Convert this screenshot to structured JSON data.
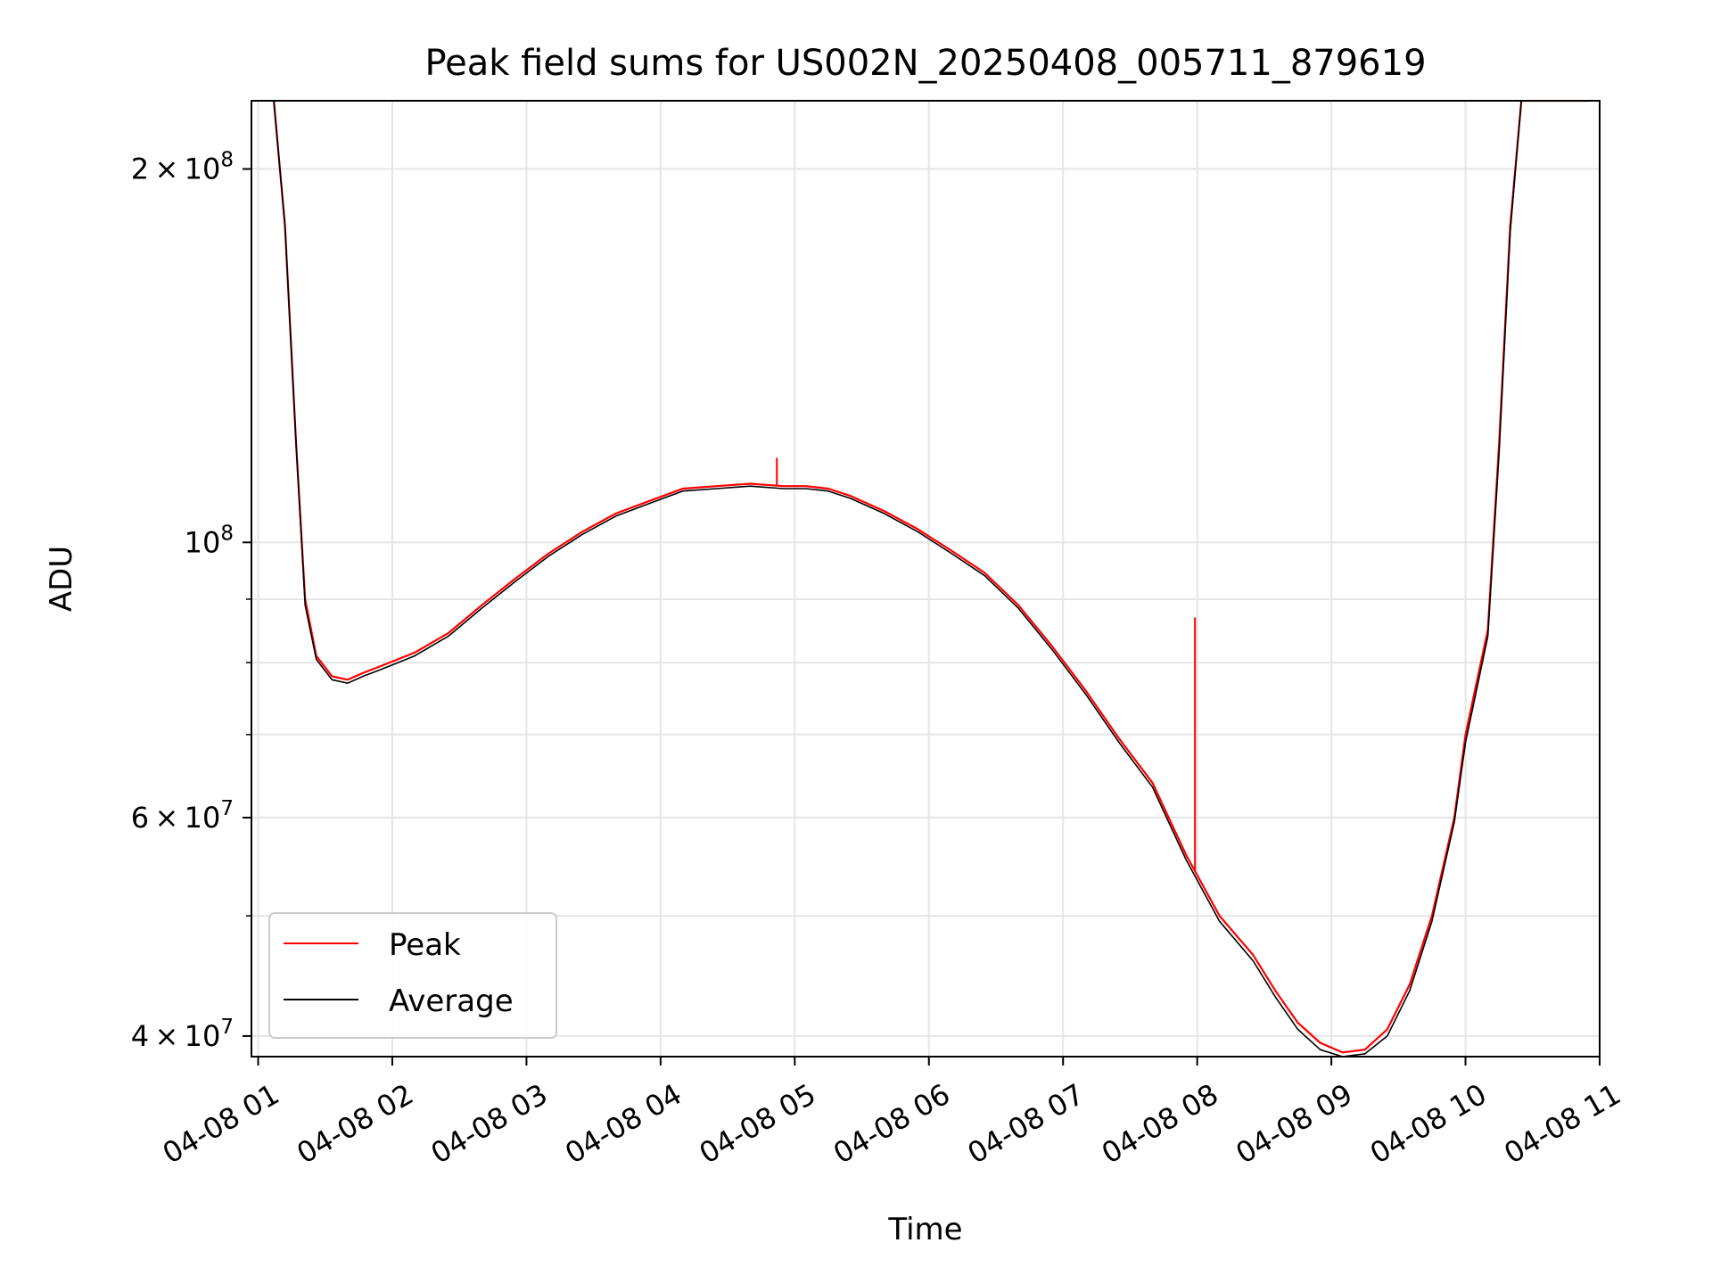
{
  "chart_data": {
    "type": "line",
    "title": "Peak field sums for US002N_20250408_005711_879619",
    "xlabel": "Time",
    "ylabel": "ADU",
    "yscale": "log",
    "ylim": [
      38500000,
      227000000
    ],
    "xlim": [
      "04-08 00:57",
      "04-08 11:00"
    ],
    "grid": true,
    "legend_position": "lower-left",
    "x_ticks": [
      "04-08 01",
      "04-08 02",
      "04-08 03",
      "04-08 04",
      "04-08 05",
      "04-08 06",
      "04-08 07",
      "04-08 08",
      "04-08 09",
      "04-08 10",
      "04-08 11"
    ],
    "y_major_ticks": [
      {
        "value": 40000000,
        "base": "4",
        "exp": "7"
      },
      {
        "value": 60000000,
        "base": "6",
        "exp": "7"
      },
      {
        "value": 100000000,
        "base": "",
        "exp": "8"
      },
      {
        "value": 200000000,
        "base": "2",
        "exp": "8"
      }
    ],
    "y_minor_ticks": [
      50000000,
      70000000,
      80000000,
      90000000
    ],
    "series": [
      {
        "name": "Peak",
        "color": "#ff0000",
        "x": [
          "04-08 01:07",
          "04-08 01:12",
          "04-08 01:17",
          "04-08 01:21",
          "04-08 01:26",
          "04-08 01:33",
          "04-08 01:40",
          "04-08 01:47",
          "04-08 01:55",
          "04-08 02:10",
          "04-08 02:25",
          "04-08 02:40",
          "04-08 02:55",
          "04-08 03:10",
          "04-08 03:25",
          "04-08 03:40",
          "04-08 03:55",
          "04-08 04:10",
          "04-08 04:25",
          "04-08 04:40",
          "04-08 04:55",
          "04-08 05:05",
          "04-08 05:15",
          "04-08 05:25",
          "04-08 05:40",
          "04-08 05:55",
          "04-08 06:10",
          "04-08 06:25",
          "04-08 06:40",
          "04-08 06:55",
          "04-08 07:10",
          "04-08 07:25",
          "04-08 07:40",
          "04-08 07:55",
          "04-08 08:10",
          "04-08 08:25",
          "04-08 08:35",
          "04-08 08:45",
          "04-08 08:55",
          "04-08 09:05",
          "04-08 09:15",
          "04-08 09:25",
          "04-08 09:35",
          "04-08 09:45",
          "04-08 09:55",
          "04-08 10:00",
          "04-08 10:10",
          "04-08 10:15",
          "04-08 10:20",
          "04-08 10:25",
          "04-08 10:30",
          "04-08 10:35",
          "04-08 10:40",
          "04-08 10:45",
          "04-08 10:50",
          "04-08 10:55"
        ],
        "y": [
          227000000,
          180000000,
          120000000,
          90000000,
          81000000,
          78000000,
          77500000,
          78500000,
          79500000,
          81500000,
          84500000,
          89000000,
          93500000,
          98000000,
          102000000,
          105500000,
          108000000,
          110500000,
          111000000,
          111500000,
          111000000,
          111000000,
          110500000,
          109000000,
          106000000,
          102500000,
          98500000,
          94500000,
          89000000,
          82500000,
          76000000,
          69500000,
          64000000,
          56000000,
          50000000,
          46500000,
          43500000,
          41000000,
          39500000,
          38800000,
          39000000,
          40500000,
          44000000,
          50000000,
          60000000,
          70000000,
          85000000,
          120000000,
          180000000,
          227000000,
          227000000,
          227000000,
          227000000,
          227000000,
          227000000,
          227000000
        ]
      },
      {
        "name": "Average",
        "color": "#000000",
        "x": [
          "04-08 01:07",
          "04-08 01:12",
          "04-08 01:17",
          "04-08 01:21",
          "04-08 01:26",
          "04-08 01:33",
          "04-08 01:40",
          "04-08 01:47",
          "04-08 01:55",
          "04-08 02:10",
          "04-08 02:25",
          "04-08 02:40",
          "04-08 02:55",
          "04-08 03:10",
          "04-08 03:25",
          "04-08 03:40",
          "04-08 03:55",
          "04-08 04:10",
          "04-08 04:25",
          "04-08 04:40",
          "04-08 04:55",
          "04-08 05:05",
          "04-08 05:15",
          "04-08 05:25",
          "04-08 05:40",
          "04-08 05:55",
          "04-08 06:10",
          "04-08 06:25",
          "04-08 06:40",
          "04-08 06:55",
          "04-08 07:10",
          "04-08 07:25",
          "04-08 07:40",
          "04-08 07:55",
          "04-08 08:10",
          "04-08 08:25",
          "04-08 08:35",
          "04-08 08:45",
          "04-08 08:55",
          "04-08 09:05",
          "04-08 09:15",
          "04-08 09:25",
          "04-08 09:35",
          "04-08 09:45",
          "04-08 09:55",
          "04-08 10:00",
          "04-08 10:10",
          "04-08 10:15",
          "04-08 10:20",
          "04-08 10:25",
          "04-08 10:30",
          "04-08 10:35",
          "04-08 10:40",
          "04-08 10:45",
          "04-08 10:50",
          "04-08 10:55"
        ],
        "y": [
          227000000,
          180000000,
          120000000,
          89000000,
          80500000,
          77500000,
          77000000,
          78000000,
          79000000,
          81000000,
          84000000,
          88500000,
          93000000,
          97500000,
          101500000,
          105000000,
          107500000,
          110000000,
          110500000,
          111000000,
          110500000,
          110500000,
          110000000,
          108500000,
          105500000,
          102000000,
          98000000,
          94000000,
          88500000,
          82000000,
          75500000,
          69000000,
          63500000,
          55500000,
          49500000,
          46000000,
          43000000,
          40500000,
          39000000,
          38500000,
          38700000,
          40000000,
          43500000,
          49500000,
          59500000,
          69000000,
          84000000,
          118000000,
          178000000,
          227000000,
          227000000,
          227000000,
          227000000,
          227000000,
          227000000,
          227000000
        ]
      }
    ],
    "annotations": [
      {
        "series": "Peak",
        "x": "04-08 04:52",
        "y": 117000000,
        "note": "spike"
      },
      {
        "series": "Peak",
        "x": "04-08 07:59",
        "y": 87000000,
        "note": "spike"
      }
    ]
  }
}
